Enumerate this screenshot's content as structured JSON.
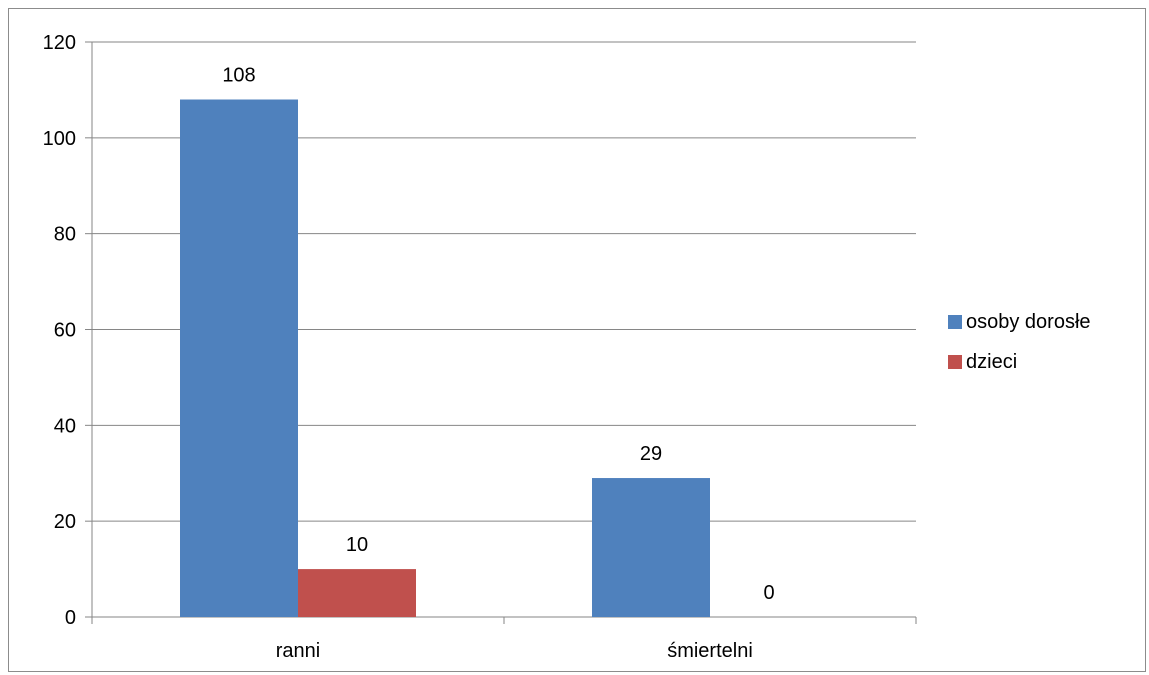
{
  "chart_data": {
    "type": "bar",
    "categories": [
      "ranni",
      "śmiertelni"
    ],
    "series": [
      {
        "name": "osoby dorosłe",
        "values": [
          108,
          29
        ],
        "color": "#4F81BD"
      },
      {
        "name": "dzieci",
        "values": [
          10,
          0
        ],
        "color": "#C0504D"
      }
    ],
    "ylim": [
      0,
      120
    ],
    "yticks": [
      0,
      20,
      40,
      60,
      80,
      100,
      120
    ],
    "grid": true,
    "legend_position": "right",
    "data_labels": true
  }
}
